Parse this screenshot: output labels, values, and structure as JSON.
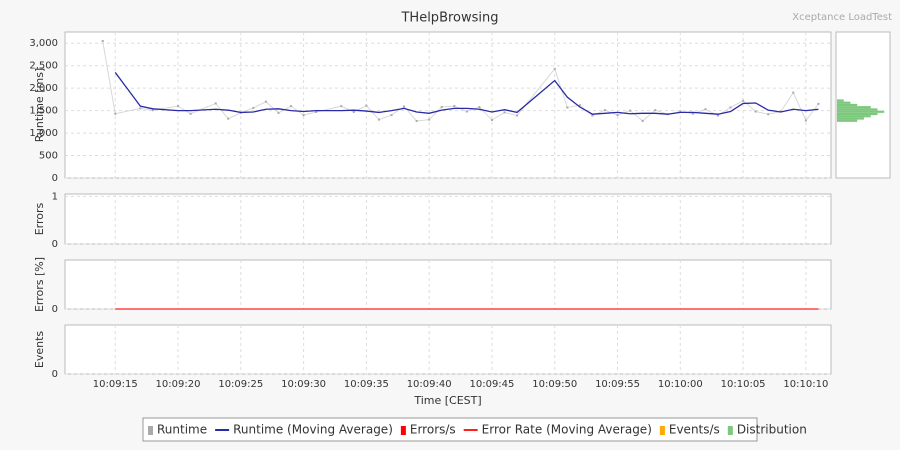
{
  "watermark": "Xceptance LoadTest",
  "chart_data": [
    {
      "type": "line",
      "title": "THelpBrowsing",
      "ylabel": "Runtime [ms]",
      "x": [
        "10:09:14",
        "10:09:15",
        "10:09:17",
        "10:09:18",
        "10:09:20",
        "10:09:21",
        "10:09:23",
        "10:09:24",
        "10:09:25",
        "10:09:26",
        "10:09:27",
        "10:09:28",
        "10:09:29",
        "10:09:30",
        "10:09:31",
        "10:09:33",
        "10:09:34",
        "10:09:35",
        "10:09:36",
        "10:09:37",
        "10:09:38",
        "10:09:39",
        "10:09:40",
        "10:09:41",
        "10:09:42",
        "10:09:43",
        "10:09:44",
        "10:09:45",
        "10:09:46",
        "10:09:47",
        "10:09:50",
        "10:09:51",
        "10:09:52",
        "10:09:53",
        "10:09:54",
        "10:09:55",
        "10:09:56",
        "10:09:57",
        "10:09:58",
        "10:09:59",
        "10:10:00",
        "10:10:01",
        "10:10:02",
        "10:10:03",
        "10:10:04",
        "10:10:05",
        "10:10:06",
        "10:10:07",
        "10:10:08",
        "10:10:09",
        "10:10:10",
        "10:10:11"
      ],
      "series": [
        {
          "name": "Runtime (Moving Average)",
          "color": "#2a2aa8",
          "style": "line",
          "values": [
            null,
            2350,
            1600,
            1540,
            1500,
            1500,
            1530,
            1510,
            1460,
            1470,
            1530,
            1540,
            1500,
            1480,
            1500,
            1500,
            1510,
            1490,
            1460,
            1500,
            1550,
            1470,
            1440,
            1510,
            1550,
            1550,
            1530,
            1470,
            1520,
            1460,
            2170,
            1800,
            1580,
            1420,
            1440,
            1460,
            1430,
            1440,
            1440,
            1420,
            1460,
            1460,
            1440,
            1420,
            1480,
            1660,
            1670,
            1510,
            1470,
            1530,
            1500,
            1530
          ]
        },
        {
          "name": "Runtime",
          "color": "#aaaaaa",
          "style": "points",
          "values": [
            3050,
            1430,
            1550,
            1510,
            1600,
            1430,
            1660,
            1320,
            1450,
            1560,
            1700,
            1450,
            1600,
            1400,
            1470,
            1600,
            1470,
            1610,
            1300,
            1400,
            1590,
            1270,
            1300,
            1580,
            1600,
            1480,
            1580,
            1290,
            1460,
            1390,
            2430,
            1570,
            1620,
            1390,
            1510,
            1400,
            1500,
            1270,
            1510,
            1420,
            1480,
            1430,
            1530,
            1390,
            1570,
            1720,
            1480,
            1420,
            1480,
            1900,
            1280,
            1650
          ]
        }
      ],
      "ylim": [
        0,
        3250
      ],
      "yticks": [
        0,
        500,
        {
          "value": 1000,
          "label": "1,000"
        },
        {
          "value": 1500,
          "label": "1,500"
        },
        {
          "value": 2000,
          "label": "2,000"
        },
        {
          "value": 2500,
          "label": "2,500"
        },
        {
          "value": 3000,
          "label": "3,000"
        }
      ],
      "grid": true
    },
    {
      "type": "histogram",
      "name": "Distribution",
      "color": "#7cc87c",
      "bins": [
        1250,
        1300,
        1350,
        1400,
        1450,
        1500,
        1550,
        1600,
        1650,
        1700,
        1750
      ],
      "counts": [
        3,
        4,
        5,
        6,
        7,
        6,
        5,
        3,
        2,
        1
      ],
      "xlim": [
        0,
        8
      ]
    },
    {
      "type": "line",
      "ylabel": "Errors",
      "x": [],
      "series": [
        {
          "name": "Errors/s",
          "color": "#ff0000",
          "style": "bars",
          "values": []
        }
      ],
      "ylim": [
        0,
        1.05
      ],
      "yticks": [
        0,
        1
      ],
      "grid": true
    },
    {
      "type": "line",
      "ylabel": "Errors [%]",
      "x": [
        "10:09:15",
        "10:10:11"
      ],
      "series": [
        {
          "name": "Error Rate (Moving Average)",
          "color": "#ff2020",
          "style": "line",
          "values": [
            0,
            0
          ]
        }
      ],
      "ylim": [
        0,
        1
      ],
      "yticks": [
        0
      ],
      "grid": true
    },
    {
      "type": "line",
      "ylabel": "Events",
      "xlabel": "Time [CEST]",
      "x": [],
      "series": [
        {
          "name": "Events/s",
          "color": "#ffaa00",
          "style": "bars",
          "values": []
        }
      ],
      "ylim": [
        0,
        1
      ],
      "yticks": [
        0
      ],
      "xlim": [
        "10:09:11",
        "10:10:12"
      ],
      "xticks": [
        "10:09:15",
        "10:09:20",
        "10:09:25",
        "10:09:30",
        "10:09:35",
        "10:09:40",
        "10:09:45",
        "10:09:50",
        "10:09:55",
        "10:10:00",
        "10:10:05",
        "10:10:10"
      ],
      "grid": true
    }
  ]
}
